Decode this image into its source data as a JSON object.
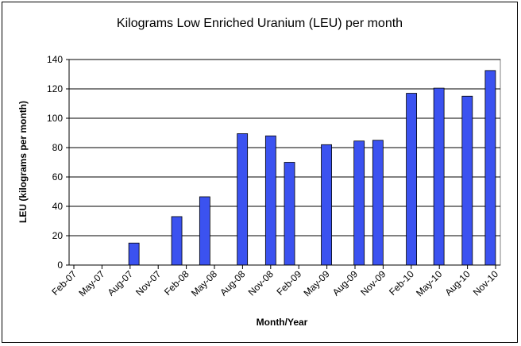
{
  "chart_data": {
    "type": "bar",
    "title": "Kilograms Low Enriched Uranium (LEU) per month",
    "xlabel": "Month/Year",
    "ylabel": "LEU (kilograms per month)",
    "ylim": [
      0,
      140
    ],
    "yticks": [
      0,
      20,
      40,
      60,
      80,
      100,
      120,
      140
    ],
    "xlim": [
      "2007-02-01",
      "2010-11-01"
    ],
    "xticks": [
      "Feb-07",
      "May-07",
      "Aug-07",
      "Nov-07",
      "Feb-08",
      "May-08",
      "Aug-08",
      "Nov-08",
      "Feb-09",
      "May-09",
      "Aug-09",
      "Nov-09",
      "Feb-10",
      "May-10",
      "Aug-10",
      "Nov-10"
    ],
    "grid": "horizontal",
    "legend": "none",
    "bar_color": "#3b52f0",
    "x": [
      "2007-08-15",
      "2008-01-01",
      "2008-04-01",
      "2008-08-01",
      "2008-11-01",
      "2009-01-01",
      "2009-05-01",
      "2009-08-15",
      "2009-10-15",
      "2010-02-01",
      "2010-05-01",
      "2010-08-01",
      "2010-10-15"
    ],
    "values": [
      15,
      33,
      46.5,
      89.5,
      88,
      70,
      82,
      84.5,
      85,
      117,
      120.5,
      115,
      132.5
    ]
  }
}
